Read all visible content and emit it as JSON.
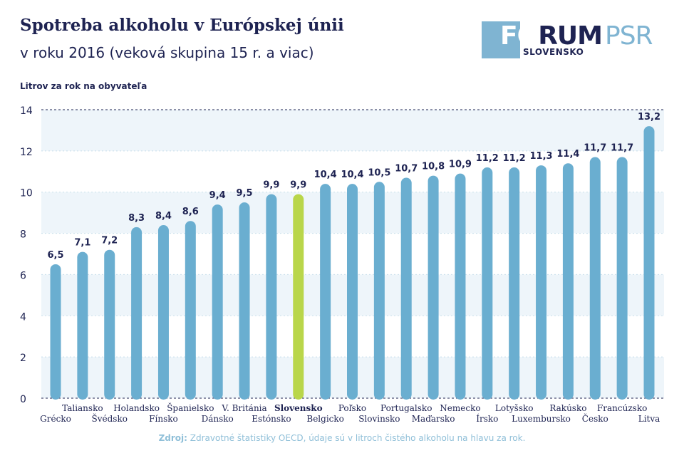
{
  "header": {
    "title": "Spotreba alkoholu v Európskej únii",
    "subtitle": "v roku 2016 (veková skupina 15 r. a viac)"
  },
  "logo": {
    "part1": "FÓ",
    "part2": "RUM",
    "part3": "PSR",
    "sub": "SLOVENSKO"
  },
  "footer": {
    "source_label": "Zdroj:",
    "source_text": "Zdravotné štatistiky OECD, údaje sú v litroch čistého alkoholu na hlavu za rok."
  },
  "colors": {
    "bar": "#6aaed0",
    "highlight": "#b9d64a",
    "text": "#1e2352",
    "band": "#eef5fa"
  },
  "chart_data": {
    "type": "bar",
    "ylabel": "Litrov za rok na obyvateľa",
    "ylim": [
      0,
      14
    ],
    "yticks": [
      0,
      2,
      4,
      6,
      8,
      10,
      12,
      14
    ],
    "highlight": "Slovensko",
    "categories": [
      "Grécko",
      "Taliansko",
      "Švédsko",
      "Holandsko",
      "Fínsko",
      "Španielsko",
      "Dánsko",
      "V. Británia",
      "Estónsko",
      "Slovensko",
      "Belgicko",
      "Poľsko",
      "Slovinsko",
      "Portugalsko",
      "Maďarsko",
      "Nemecko",
      "Írsko",
      "Lotyšsko",
      "Luxembursko",
      "Rakúsko",
      "Česko",
      "Francúzsko",
      "Litva"
    ],
    "values": [
      6.5,
      7.1,
      7.2,
      8.3,
      8.4,
      8.6,
      9.4,
      9.5,
      9.9,
      9.9,
      10.4,
      10.4,
      10.5,
      10.7,
      10.8,
      10.9,
      11.2,
      11.2,
      11.3,
      11.4,
      11.7,
      11.7,
      13.2
    ],
    "value_labels": [
      "6,5",
      "7,1",
      "7,2",
      "8,3",
      "8,4",
      "8,6",
      "9,4",
      "9,5",
      "9,9",
      "9,9",
      "10,4",
      "10,4",
      "10,5",
      "10,7",
      "10,8",
      "10,9",
      "11,2",
      "11,2",
      "11,3",
      "11,4",
      "11,7",
      "11,7",
      "13,2"
    ],
    "grid": true
  }
}
